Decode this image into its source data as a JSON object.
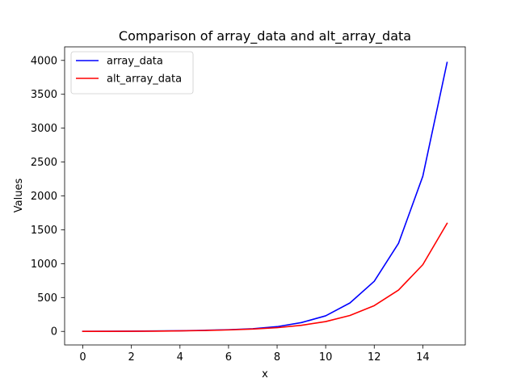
{
  "chart_data": {
    "type": "line",
    "title": "Comparison of array_data and alt_array_data",
    "xlabel": "x",
    "ylabel": "Values",
    "xlim": [
      -0.75,
      15.75
    ],
    "ylim": [
      -200,
      4200
    ],
    "x_ticks": [
      0,
      2,
      4,
      6,
      8,
      10,
      12,
      14
    ],
    "y_ticks": [
      0,
      500,
      1000,
      1500,
      2000,
      2500,
      3000,
      3500,
      4000
    ],
    "grid": false,
    "legend_position": "top-left",
    "x": [
      0,
      1,
      2,
      3,
      4,
      5,
      6,
      7,
      8,
      9,
      10,
      11,
      12,
      13,
      14,
      15
    ],
    "series": [
      {
        "name": "array_data",
        "color": "#0000ff",
        "values": [
          1,
          2,
          4,
          7,
          10,
          16,
          25,
          40,
          70,
          130,
          230,
          420,
          740,
          1300,
          2290,
          3970
        ]
      },
      {
        "name": "alt_array_data",
        "color": "#ff0000",
        "values": [
          0,
          1,
          2,
          4,
          8,
          13,
          22,
          35,
          55,
          90,
          145,
          235,
          380,
          610,
          985,
          1595
        ]
      }
    ]
  }
}
